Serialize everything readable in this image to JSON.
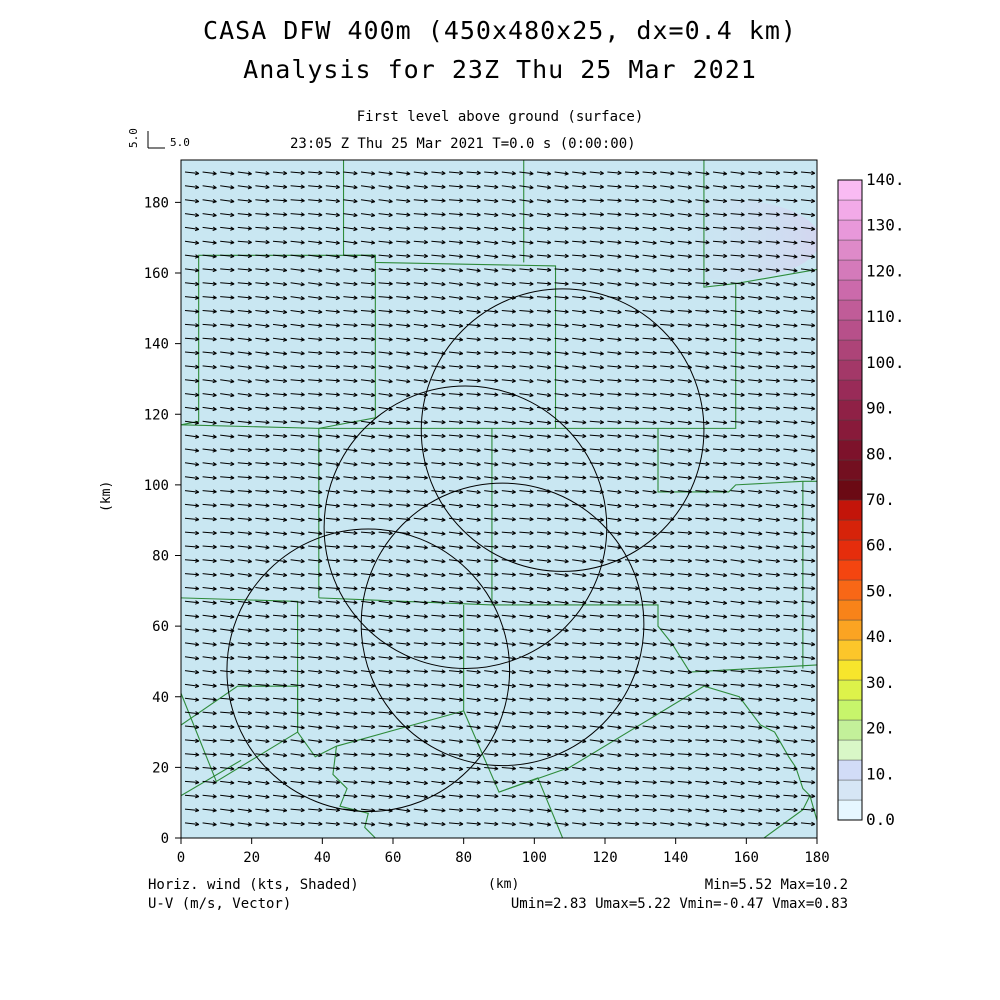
{
  "title": {
    "line1": "CASA DFW 400m (450x480x25, dx=0.4 km)",
    "line2": "Analysis for 23Z Thu 25 Mar 2021"
  },
  "subtitle": {
    "line1": "First level above ground (surface)",
    "line2": "23:05 Z Thu 25 Mar 2021    T=0.0 s (0:00:00)"
  },
  "vector_scale": {
    "vertical": "5.0",
    "horizontal": "5.0"
  },
  "axes": {
    "x_label": "(km)",
    "y_label": "(km)",
    "x_range": [
      0,
      180
    ],
    "y_range": [
      0,
      192
    ],
    "x_ticks": [
      "0",
      "20",
      "40",
      "60",
      "80",
      "100",
      "120",
      "140",
      "160",
      "180"
    ],
    "y_ticks": [
      "0",
      "20",
      "40",
      "60",
      "80",
      "100",
      "120",
      "140",
      "160",
      "180"
    ]
  },
  "colorbar": {
    "labels": [
      "0.0",
      "10.",
      "20.",
      "30.",
      "40.",
      "50.",
      "60.",
      "70.",
      "80.",
      "90.",
      "100.",
      "110.",
      "120.",
      "130.",
      "140."
    ],
    "colors": [
      "#e6f7ff",
      "#d6e6f5",
      "#d2dcf7",
      "#d9f7c7",
      "#c3f09a",
      "#c7f56b",
      "#ddf24a",
      "#f7e52c",
      "#fcc62a",
      "#fba422",
      "#f88319",
      "#f86716",
      "#f44510",
      "#e52d0c",
      "#d6230a",
      "#c3150a",
      "#6b0a14",
      "#730f20",
      "#7d122b",
      "#881a3a",
      "#8f2146",
      "#992b58",
      "#a33868",
      "#ad4478",
      "#b7508a",
      "#c05c98",
      "#cb6aab",
      "#d47aba",
      "#de8ac9",
      "#e898da",
      "#f2aae8",
      "#f9bbf3"
    ]
  },
  "footer": {
    "left1": "Horiz. wind (kts, Shaded)",
    "left2": "U-V (m/s, Vector)",
    "center": "(km)",
    "right1": "Min=5.52 Max=10.2",
    "right2": "Umin=2.83 Umax=5.22 Vmin=-0.47 Vmax=0.83"
  },
  "map": {
    "background_color": "#c9e7f2",
    "boundary_color": "#2e8b3a",
    "vector_color": "#000000",
    "radar_ranges": [
      {
        "cx": 108,
        "cy": 115.5,
        "r": 40
      },
      {
        "cx": 80.5,
        "cy": 88,
        "r": 40
      },
      {
        "cx": 53,
        "cy": 47.5,
        "r": 40
      },
      {
        "cx": 91,
        "cy": 60.5,
        "r": 40
      }
    ]
  }
}
